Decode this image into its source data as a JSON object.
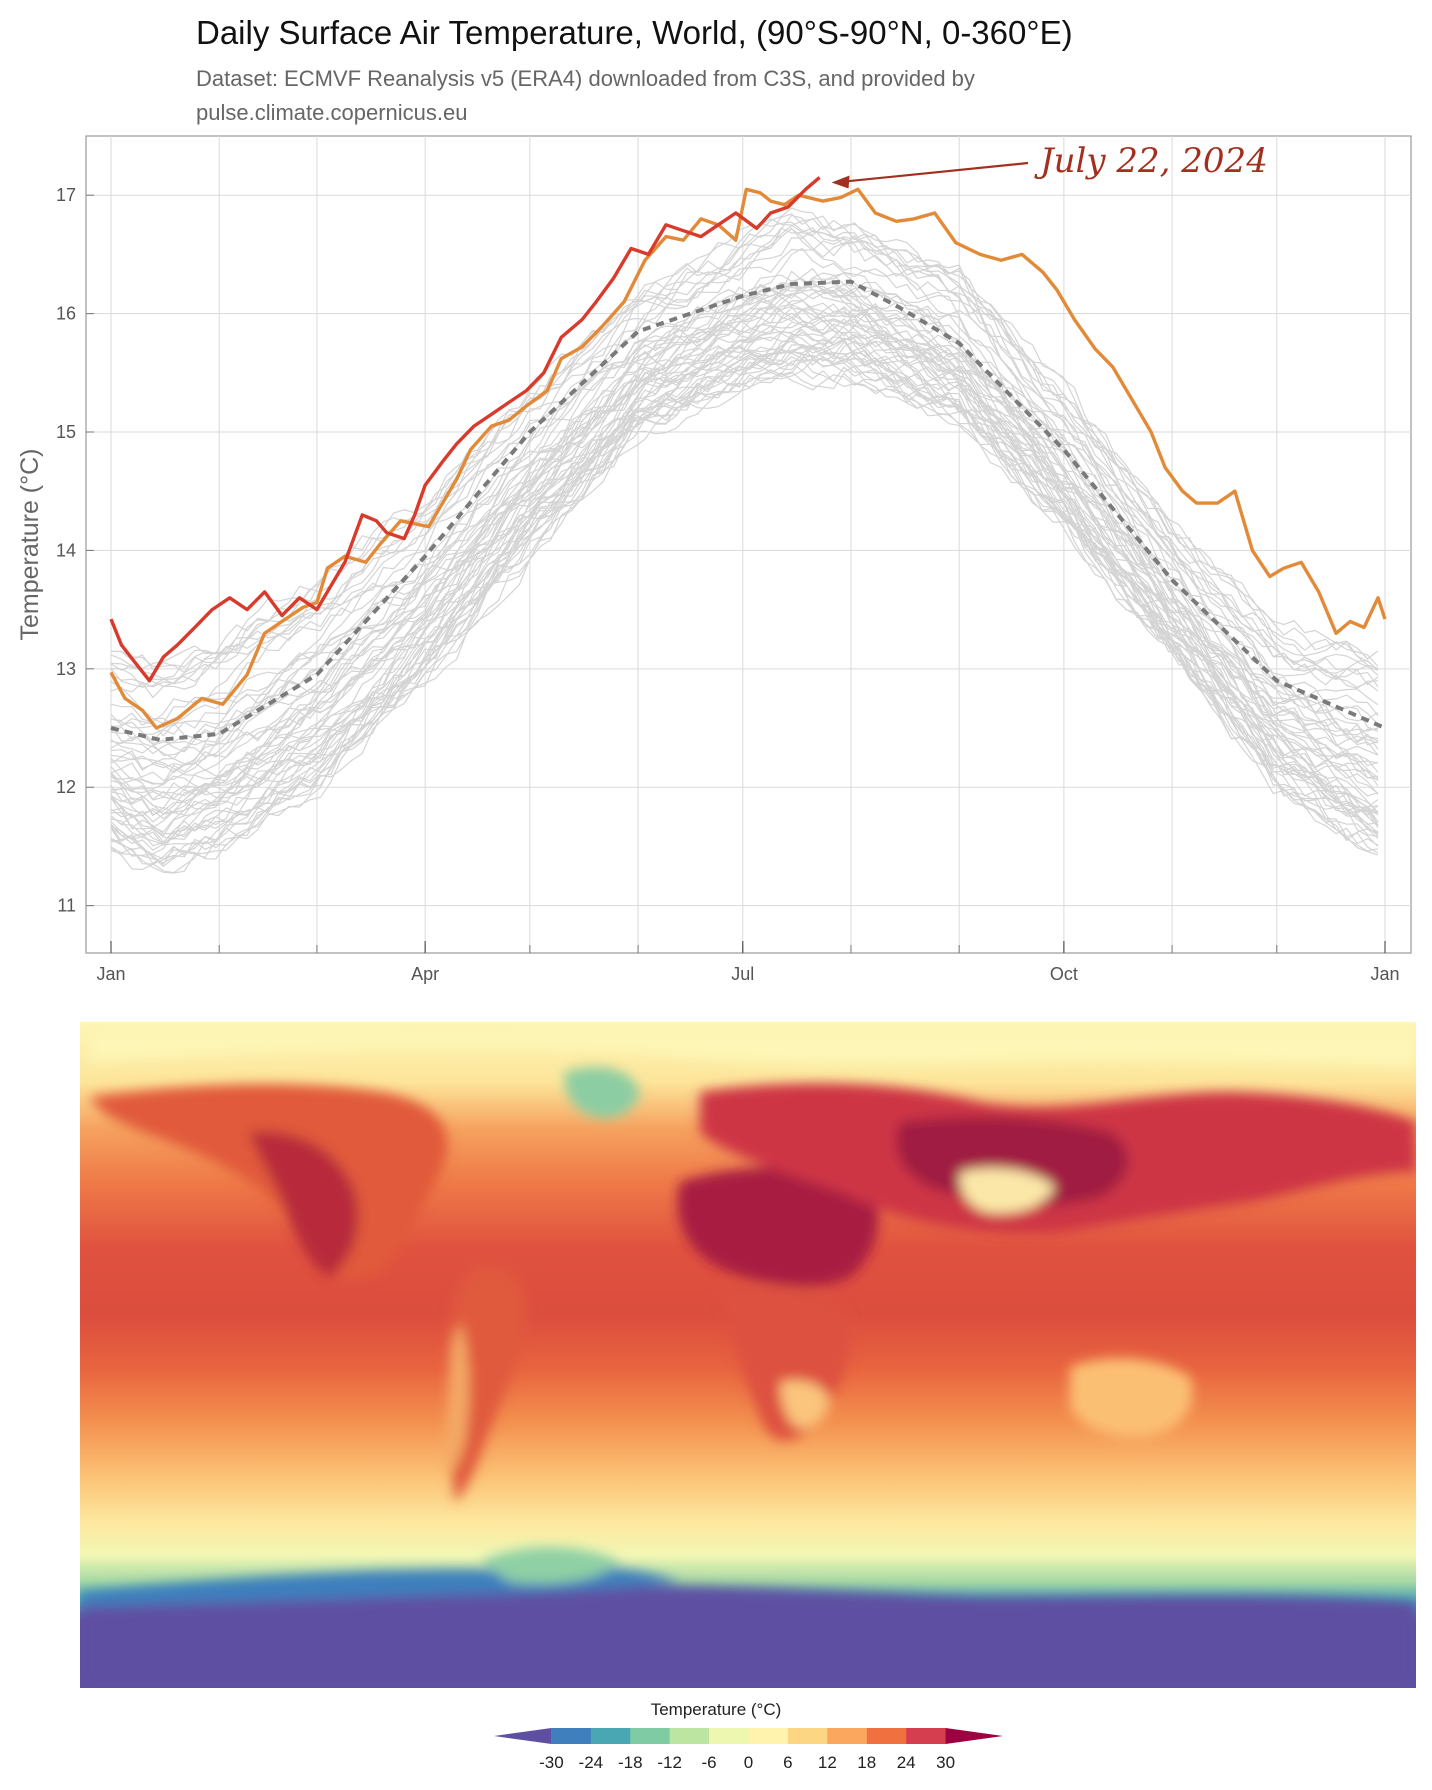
{
  "header": {
    "title": "Daily Surface Air Temperature, World, (90°S-90°N, 0-360°E)",
    "subtitle_line1": "Dataset: ECMVF Reanalysis v5 (ERA4) downloaded from C3S, and provided by",
    "subtitle_line2": "pulse.climate.copernicus.eu"
  },
  "chart_data": [
    {
      "type": "line",
      "title": "Daily Surface Air Temperature, World, (90°S-90°N, 0-360°E)",
      "ylabel": "Temperature (°C)",
      "xlabel": "",
      "ylim": [
        10.6,
        17.5
      ],
      "yticks": [
        11,
        12,
        13,
        14,
        15,
        16,
        17
      ],
      "xticks": [
        {
          "day": 1,
          "label": "Jan"
        },
        {
          "day": 91,
          "label": "Apr"
        },
        {
          "day": 182,
          "label": "Jul"
        },
        {
          "day": 274,
          "label": "Oct"
        },
        {
          "day": 366,
          "label": "Jan"
        }
      ],
      "grid": true,
      "annotation": {
        "text": "July 22, 2024",
        "day": 204,
        "value": 17.15,
        "color": "#a3301f"
      },
      "colors": {
        "historical": "#d4d4d4",
        "mean": "#7a7a7a",
        "series_orange": "#e38a38",
        "series_red": "#d83a2b"
      },
      "historical_envelope": {
        "note_days": [
          1,
          15,
          32,
          60,
          91,
          121,
          152,
          182,
          196,
          213,
          244,
          274,
          305,
          335,
          366
        ],
        "upper": [
          13.1,
          13.0,
          13.2,
          13.7,
          14.4,
          15.3,
          16.1,
          16.6,
          16.8,
          16.7,
          16.3,
          15.3,
          14.2,
          13.3,
          13.1
        ],
        "lower": [
          11.5,
          11.3,
          11.5,
          12.0,
          12.9,
          14.0,
          15.0,
          15.4,
          15.5,
          15.5,
          15.1,
          14.2,
          13.1,
          12.0,
          11.4
        ]
      },
      "series": [
        {
          "name": "",
          "style": "dashed",
          "color": "#7a7a7a",
          "days": [
            1,
            15,
            32,
            60,
            91,
            121,
            152,
            182,
            196,
            213,
            227,
            244,
            274,
            305,
            335,
            366
          ],
          "values": [
            12.5,
            12.4,
            12.45,
            12.95,
            13.95,
            15.0,
            15.85,
            16.15,
            16.25,
            16.27,
            16.05,
            15.75,
            14.85,
            13.75,
            12.9,
            12.5
          ]
        },
        {
          "name": "",
          "style": "solid",
          "color": "#e38a38",
          "days": [
            1,
            5,
            10,
            14,
            20,
            27,
            33,
            40,
            45,
            50,
            56,
            60,
            63,
            68,
            74,
            78,
            84,
            92,
            100,
            104,
            110,
            115,
            120,
            126,
            130,
            136,
            142,
            148,
            154,
            160,
            165,
            170,
            175,
            180,
            183,
            187,
            190,
            194,
            198,
            205,
            210,
            215,
            220,
            226,
            231,
            237,
            243,
            250,
            256,
            262,
            268,
            272,
            277,
            283,
            288,
            293,
            299,
            303,
            308,
            312,
            318,
            323,
            328,
            333,
            337,
            342,
            347,
            352,
            356,
            360,
            364,
            366
          ],
          "values": [
            12.97,
            12.75,
            12.65,
            12.5,
            12.58,
            12.75,
            12.7,
            12.95,
            13.3,
            13.4,
            13.52,
            13.56,
            13.85,
            13.95,
            13.9,
            14.05,
            14.25,
            14.2,
            14.6,
            14.85,
            15.05,
            15.1,
            15.22,
            15.35,
            15.62,
            15.72,
            15.9,
            16.1,
            16.45,
            16.65,
            16.62,
            16.8,
            16.75,
            16.62,
            17.05,
            17.02,
            16.95,
            16.92,
            17.0,
            16.95,
            16.98,
            17.05,
            16.85,
            16.78,
            16.8,
            16.85,
            16.6,
            16.5,
            16.45,
            16.5,
            16.35,
            16.2,
            15.95,
            15.7,
            15.55,
            15.3,
            15.0,
            14.7,
            14.5,
            14.4,
            14.4,
            14.5,
            14.0,
            13.78,
            13.85,
            13.9,
            13.65,
            13.3,
            13.4,
            13.35,
            13.6,
            13.42
          ]
        },
        {
          "name": "",
          "style": "solid",
          "color": "#d83a2b",
          "days": [
            1,
            4,
            8,
            12,
            16,
            20,
            25,
            30,
            35,
            40,
            45,
            50,
            55,
            60,
            64,
            68,
            73,
            77,
            80,
            85,
            88,
            91,
            96,
            100,
            105,
            110,
            115,
            120,
            125,
            130,
            136,
            140,
            145,
            150,
            155,
            160,
            165,
            170,
            175,
            180,
            186,
            190,
            195,
            200,
            204
          ],
          "values": [
            13.42,
            13.2,
            13.05,
            12.9,
            13.1,
            13.2,
            13.35,
            13.5,
            13.6,
            13.5,
            13.65,
            13.45,
            13.6,
            13.5,
            13.7,
            13.9,
            14.3,
            14.25,
            14.15,
            14.1,
            14.3,
            14.55,
            14.75,
            14.9,
            15.05,
            15.15,
            15.25,
            15.35,
            15.5,
            15.8,
            15.95,
            16.1,
            16.3,
            16.55,
            16.5,
            16.75,
            16.7,
            16.65,
            16.75,
            16.85,
            16.72,
            16.85,
            16.9,
            17.05,
            17.15
          ]
        }
      ]
    },
    {
      "type": "heatmap",
      "title": "",
      "legend_title": "Temperature (°C)",
      "colorbar_ticks": [
        -30,
        -24,
        -18,
        -12,
        -6,
        0,
        6,
        12,
        18,
        24,
        30
      ],
      "colorbar_colors": [
        "#5e4fa2",
        "#3f7fbd",
        "#49a7b4",
        "#7fcba4",
        "#bbe5a0",
        "#eef7b0",
        "#fff3ad",
        "#fdd684",
        "#fba75d",
        "#f1703f",
        "#d53e4f",
        "#9e0142"
      ]
    }
  ]
}
